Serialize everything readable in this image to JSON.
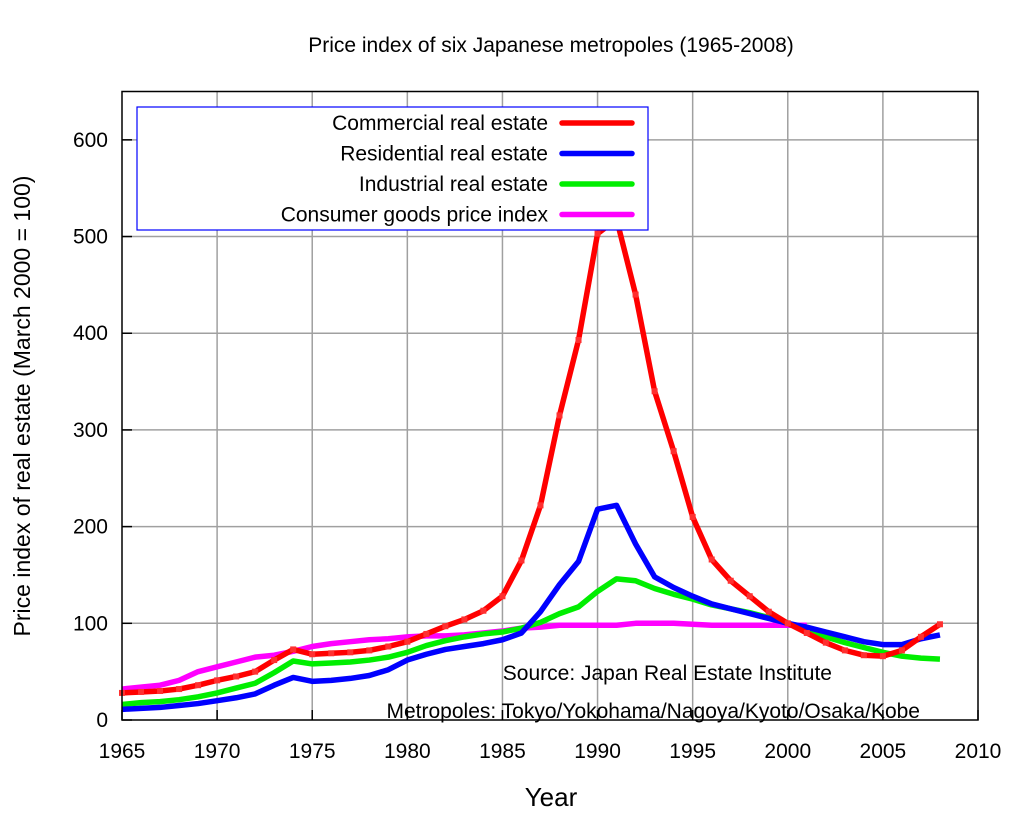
{
  "chart_data": {
    "type": "line",
    "title": "Price index of six Japanese metropoles (1965-2008)",
    "xlabel": "Year",
    "ylabel": "Price index of real estate (March 2000 = 100)",
    "xlim": [
      1965,
      2010
    ],
    "ylim": [
      0,
      650
    ],
    "xticks": [
      1965,
      1970,
      1975,
      1980,
      1985,
      1990,
      1995,
      2000,
      2005,
      2010
    ],
    "yticks": [
      0,
      100,
      200,
      300,
      400,
      500,
      600
    ],
    "grid": true,
    "legend_position": "top-left",
    "annotations": [
      "Source: Japan Real Estate Institute",
      "Metropoles: Tokyo/Yokohama/Nagoya/Kyoto/Osaka/Kobe"
    ],
    "series": [
      {
        "name": "Commercial real estate",
        "color": "#ff0000",
        "x_start": 1965,
        "values": [
          28,
          29,
          30,
          32,
          36,
          41,
          45,
          50,
          62,
          73,
          68,
          69,
          70,
          72,
          76,
          81,
          89,
          97,
          104,
          113,
          128,
          165,
          222,
          315,
          393,
          503,
          518,
          440,
          340,
          278,
          210,
          166,
          144,
          128,
          112,
          100,
          90,
          80,
          72,
          67,
          66,
          72,
          86,
          99
        ]
      },
      {
        "name": "Residential real estate",
        "color": "#0000ff",
        "x_start": 1965,
        "values": [
          11,
          12,
          13,
          15,
          17,
          20,
          23,
          27,
          36,
          44,
          40,
          41,
          43,
          46,
          52,
          62,
          68,
          73,
          76,
          79,
          83,
          90,
          112,
          140,
          164,
          218,
          222,
          182,
          148,
          137,
          128,
          120,
          115,
          110,
          105,
          100,
          96,
          91,
          86,
          81,
          78,
          78,
          84,
          88
        ]
      },
      {
        "name": "Industrial real estate",
        "color": "#00ee00",
        "x_start": 1965,
        "values": [
          16,
          18,
          19,
          21,
          24,
          28,
          33,
          38,
          49,
          61,
          58,
          59,
          60,
          62,
          65,
          70,
          77,
          82,
          86,
          89,
          91,
          95,
          101,
          110,
          117,
          133,
          146,
          144,
          136,
          130,
          125,
          119,
          115,
          111,
          106,
          100,
          93,
          86,
          80,
          75,
          70,
          66,
          64,
          63
        ]
      },
      {
        "name": "Consumer goods price index",
        "color": "#ff00ff",
        "x_start": 1965,
        "values": [
          32,
          34,
          36,
          41,
          50,
          55,
          60,
          65,
          67,
          71,
          76,
          79,
          81,
          83,
          84,
          86,
          87,
          87,
          88,
          90,
          92,
          95,
          96,
          98,
          98,
          98,
          98,
          100,
          100,
          100,
          99,
          98,
          98,
          98,
          98,
          98,
          98
        ]
      }
    ]
  }
}
